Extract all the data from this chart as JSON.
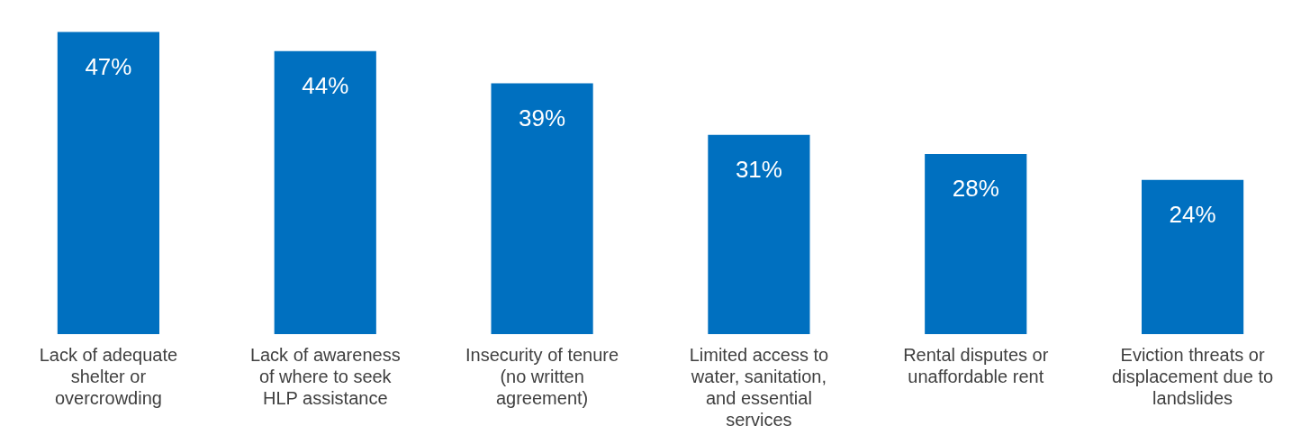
{
  "chart_data": {
    "type": "bar",
    "categories": [
      "Lack of adequate shelter or overcrowding",
      "Lack of awareness of where to seek HLP assistance",
      "Insecurity of tenure (no written agreement)",
      "Limited access to water, sanitation, and essential services",
      "Rental disputes or unaffordable rent",
      "Eviction threats or displacement due to landslides"
    ],
    "values": [
      47,
      44,
      39,
      31,
      28,
      24
    ],
    "value_labels": [
      "47%",
      "44%",
      "39%",
      "31%",
      "28%",
      "24%"
    ],
    "color": "#0070c0",
    "grid": false,
    "legend": false
  }
}
